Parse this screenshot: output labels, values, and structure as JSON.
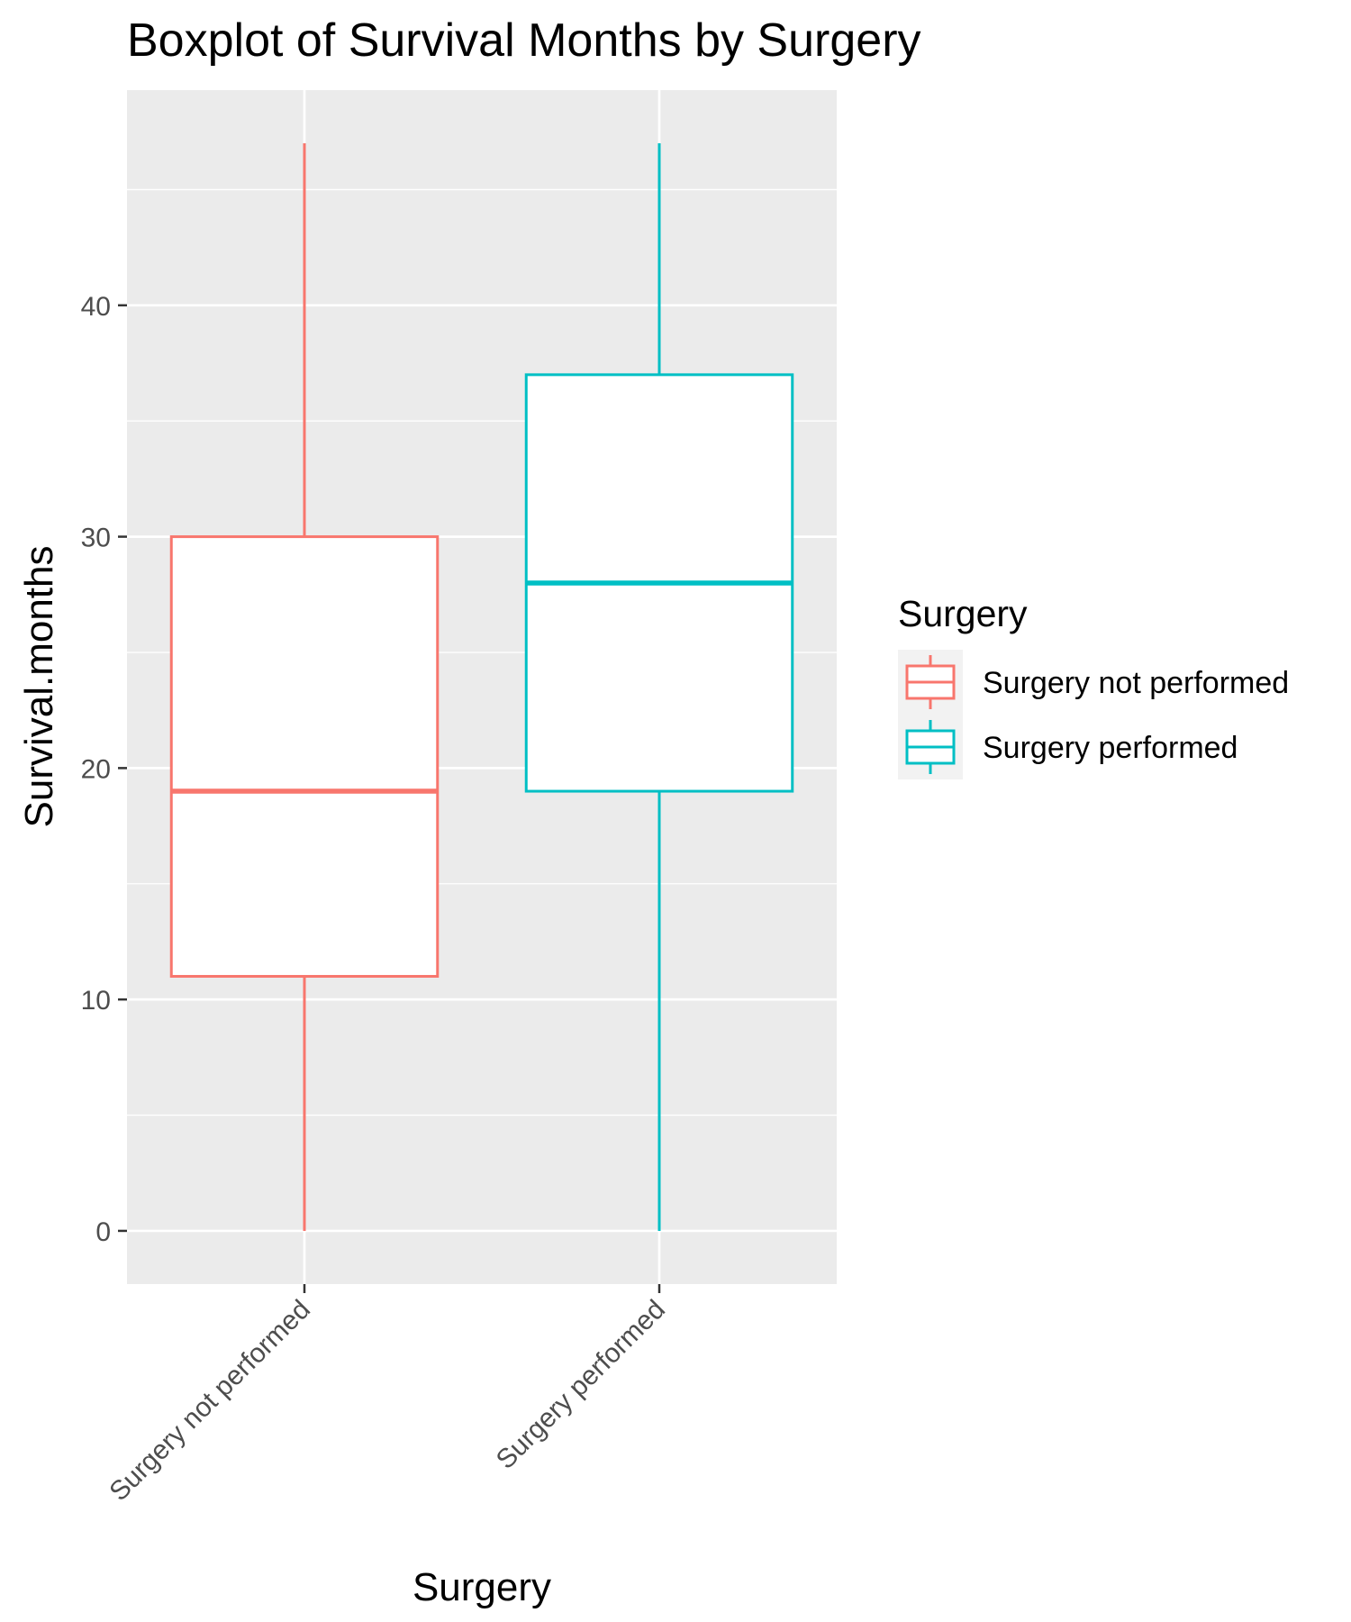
{
  "chart_data": {
    "type": "boxplot",
    "title": "Boxplot of Survival Months by Surgery",
    "xlabel": "Surgery",
    "ylabel": "Survival.months",
    "ylim": [
      -2.3,
      49.3
    ],
    "yticks": [
      0,
      10,
      20,
      30,
      40
    ],
    "grid": true,
    "legend": {
      "title": "Surgery",
      "position": "right",
      "entries": [
        "Surgery not performed",
        "Surgery performed"
      ]
    },
    "categories": [
      "Surgery not performed",
      "Surgery performed"
    ],
    "series": [
      {
        "name": "Surgery not performed",
        "color": "#F8766D",
        "min": 0,
        "q1": 11,
        "median": 19,
        "q3": 30,
        "max": 47
      },
      {
        "name": "Surgery performed",
        "color": "#00BFC4",
        "min": 0,
        "q1": 19,
        "median": 28,
        "q3": 37,
        "max": 47
      }
    ]
  }
}
